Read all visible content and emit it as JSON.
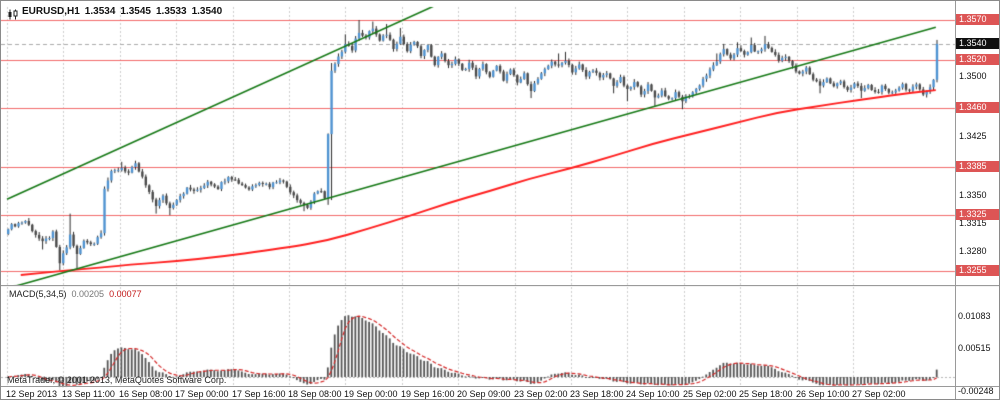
{
  "header": {
    "symbol": "EURUSD,H1",
    "open": "1.3534",
    "high": "1.3545",
    "low": "1.3533",
    "close": "1.3540"
  },
  "macd": {
    "label": "MACD(5,34,5)",
    "value_main": "0.00205",
    "value_signal": "0.00077"
  },
  "footer": {
    "copyright": "MetaTrader, © 2001-2013, MetaQuotes Software Corp."
  },
  "colors": {
    "bull": "#4f93d1",
    "bear": "#4a4a4a",
    "wick": "#2b2b2b",
    "ma": "#ff1f1f",
    "trend": "#157815",
    "level_line": "#f26a6a",
    "level_badge": "#dd5555",
    "current_badge": "#101010",
    "grid": "#cccccc",
    "macd_bar": "#555555",
    "macd_signal": "#d42a2a"
  },
  "chart_data": {
    "type": "candlestick",
    "title": "EURUSD,H1",
    "subpanel": "MACD(5,34,5)",
    "x_ticks": [
      "12 Sep 2013",
      "13 Sep 11:00",
      "16 Sep 08:00",
      "17 Sep 00:00",
      "17 Sep 16:00",
      "18 Sep 08:00",
      "19 Sep 00:00",
      "19 Sep 16:00",
      "20 Sep 09:00",
      "23 Sep 02:00",
      "23 Sep 18:00",
      "24 Sep 10:00",
      "25 Sep 02:00",
      "25 Sep 18:00",
      "26 Sep 10:00",
      "27 Sep 02:00"
    ],
    "price_axis": {
      "plain": [
        1.35,
        1.3425,
        1.335,
        1.3315,
        1.328
      ],
      "levels": [
        1.357,
        1.352,
        1.346,
        1.3385,
        1.3325,
        1.3255
      ],
      "last_price": 1.354
    },
    "macd_axis": {
      "labels": [
        0.01083,
        0.00515,
        -0.00248
      ]
    },
    "indicator": {
      "name": "MACD",
      "fast": 5,
      "slow": 34,
      "signal": 5,
      "current": 0.00205,
      "current_signal": 0.00077
    },
    "candles": {
      "count": 271,
      "wiggle": 0.00026,
      "anchors": [
        [
          0,
          1.331
        ],
        [
          5,
          1.3318
        ],
        [
          10,
          1.329
        ],
        [
          13,
          1.3302
        ],
        [
          15,
          1.3265
        ],
        [
          17,
          1.3285
        ],
        [
          18,
          1.33
        ],
        [
          20,
          1.3275
        ],
        [
          22,
          1.3292
        ],
        [
          25,
          1.329
        ],
        [
          27,
          1.3305
        ],
        [
          28,
          1.336
        ],
        [
          30,
          1.3378
        ],
        [
          33,
          1.3385
        ],
        [
          35,
          1.3378
        ],
        [
          37,
          1.3388
        ],
        [
          39,
          1.3372
        ],
        [
          41,
          1.3352
        ],
        [
          43,
          1.3338
        ],
        [
          45,
          1.3348
        ],
        [
          47,
          1.3334
        ],
        [
          49,
          1.3346
        ],
        [
          52,
          1.3358
        ],
        [
          55,
          1.3355
        ],
        [
          58,
          1.3368
        ],
        [
          61,
          1.336
        ],
        [
          64,
          1.3375
        ],
        [
          67,
          1.3366
        ],
        [
          70,
          1.3358
        ],
        [
          73,
          1.3368
        ],
        [
          76,
          1.3362
        ],
        [
          79,
          1.3371
        ],
        [
          82,
          1.3356
        ],
        [
          85,
          1.3341
        ],
        [
          87,
          1.3335
        ],
        [
          89,
          1.335
        ],
        [
          91,
          1.3357
        ],
        [
          92,
          1.3346
        ],
        [
          94,
          1.3505
        ],
        [
          96,
          1.3522
        ],
        [
          98,
          1.3542
        ],
        [
          100,
          1.3533
        ],
        [
          102,
          1.3556
        ],
        [
          104,
          1.3548
        ],
        [
          106,
          1.356
        ],
        [
          108,
          1.3543
        ],
        [
          110,
          1.3553
        ],
        [
          112,
          1.3536
        ],
        [
          114,
          1.3549
        ],
        [
          116,
          1.3531
        ],
        [
          118,
          1.3543
        ],
        [
          120,
          1.3526
        ],
        [
          122,
          1.3536
        ],
        [
          124,
          1.3516
        ],
        [
          126,
          1.3529
        ],
        [
          128,
          1.3511
        ],
        [
          130,
          1.3521
        ],
        [
          132,
          1.3506
        ],
        [
          134,
          1.3516
        ],
        [
          136,
          1.3501
        ],
        [
          138,
          1.3513
        ],
        [
          140,
          1.3499
        ],
        [
          142,
          1.3511
        ],
        [
          144,
          1.3496
        ],
        [
          146,
          1.3506
        ],
        [
          148,
          1.3491
        ],
        [
          150,
          1.3501
        ],
        [
          152,
          1.3483
        ],
        [
          154,
          1.3496
        ],
        [
          156,
          1.3506
        ],
        [
          158,
          1.3519
        ],
        [
          160,
          1.3511
        ],
        [
          162,
          1.3521
        ],
        [
          164,
          1.3506
        ],
        [
          166,
          1.3513
        ],
        [
          168,
          1.3499
        ],
        [
          170,
          1.3509
        ],
        [
          172,
          1.3496
        ],
        [
          174,
          1.3503
        ],
        [
          176,
          1.3489
        ],
        [
          178,
          1.3496
        ],
        [
          180,
          1.3481
        ],
        [
          182,
          1.3491
        ],
        [
          184,
          1.3479
        ],
        [
          186,
          1.3487
        ],
        [
          188,
          1.3473
        ],
        [
          190,
          1.3481
        ],
        [
          192,
          1.3471
        ],
        [
          194,
          1.3477
        ],
        [
          196,
          1.3469
        ],
        [
          198,
          1.3476
        ],
        [
          200,
          1.3483
        ],
        [
          202,
          1.3496
        ],
        [
          204,
          1.3506
        ],
        [
          206,
          1.3519
        ],
        [
          208,
          1.3531
        ],
        [
          210,
          1.3523
        ],
        [
          212,
          1.3533
        ],
        [
          214,
          1.3526
        ],
        [
          216,
          1.3536
        ],
        [
          218,
          1.3529
        ],
        [
          220,
          1.3539
        ],
        [
          222,
          1.3531
        ],
        [
          224,
          1.3519
        ],
        [
          226,
          1.3526
        ],
        [
          228,
          1.3511
        ],
        [
          230,
          1.3501
        ],
        [
          232,
          1.3509
        ],
        [
          234,
          1.3496
        ],
        [
          236,
          1.3489
        ],
        [
          238,
          1.3496
        ],
        [
          240,
          1.3486
        ],
        [
          242,
          1.3493
        ],
        [
          244,
          1.3483
        ],
        [
          246,
          1.3489
        ],
        [
          248,
          1.3481
        ],
        [
          250,
          1.3487
        ],
        [
          252,
          1.3479
        ],
        [
          254,
          1.3485
        ],
        [
          256,
          1.3477
        ],
        [
          258,
          1.3483
        ],
        [
          260,
          1.3489
        ],
        [
          262,
          1.3481
        ],
        [
          264,
          1.3487
        ],
        [
          266,
          1.3479
        ],
        [
          268,
          1.3485
        ],
        [
          269,
          1.3495
        ],
        [
          270,
          1.354
        ]
      ],
      "spikes": [
        [
          0,
          "l",
          1.33
        ],
        [
          10,
          "l",
          1.3282
        ],
        [
          15,
          "l",
          1.3256
        ],
        [
          18,
          "h",
          1.3327
        ],
        [
          20,
          "l",
          1.3258
        ],
        [
          33,
          "h",
          1.3392
        ],
        [
          43,
          "l",
          1.3327
        ],
        [
          47,
          "l",
          1.3325
        ],
        [
          86,
          "l",
          1.333
        ],
        [
          93,
          "l",
          1.3338
        ],
        [
          94,
          "h",
          1.3516
        ],
        [
          94,
          "l",
          1.3344
        ],
        [
          98,
          "h",
          1.3552
        ],
        [
          102,
          "h",
          1.357
        ],
        [
          106,
          "h",
          1.3568
        ],
        [
          110,
          "h",
          1.3565
        ],
        [
          114,
          "h",
          1.356
        ],
        [
          152,
          "l",
          1.3472
        ],
        [
          160,
          "h",
          1.3528
        ],
        [
          162,
          "h",
          1.353
        ],
        [
          176,
          "l",
          1.3478
        ],
        [
          180,
          "l",
          1.3468
        ],
        [
          188,
          "l",
          1.3462
        ],
        [
          196,
          "l",
          1.3458
        ],
        [
          206,
          "h",
          1.3528
        ],
        [
          208,
          "h",
          1.354
        ],
        [
          212,
          "h",
          1.3542
        ],
        [
          216,
          "h",
          1.3548
        ],
        [
          220,
          "h",
          1.355
        ],
        [
          236,
          "l",
          1.3478
        ],
        [
          248,
          "l",
          1.3472
        ],
        [
          270,
          "h",
          1.3545
        ]
      ]
    },
    "ma_points": [
      [
        4,
        1.325
      ],
      [
        30,
        1.3261
      ],
      [
        57,
        1.327
      ],
      [
        81,
        1.3284
      ],
      [
        93,
        1.3293
      ],
      [
        105,
        1.3308
      ],
      [
        117,
        1.3324
      ],
      [
        128,
        1.334
      ],
      [
        140,
        1.3355
      ],
      [
        152,
        1.3371
      ],
      [
        164,
        1.3384
      ],
      [
        176,
        1.3399
      ],
      [
        188,
        1.3415
      ],
      [
        200,
        1.3428
      ],
      [
        212,
        1.3441
      ],
      [
        224,
        1.3454
      ],
      [
        236,
        1.3462
      ],
      [
        248,
        1.347
      ],
      [
        260,
        1.3477
      ],
      [
        270,
        1.3482
      ]
    ],
    "trendlines": [
      {
        "i0": 0,
        "p0": 1.3345,
        "i1": 130,
        "p1": 1.3599
      },
      {
        "i0": 0,
        "p0": 1.3233,
        "i1": 270,
        "p1": 1.3561
      }
    ]
  }
}
